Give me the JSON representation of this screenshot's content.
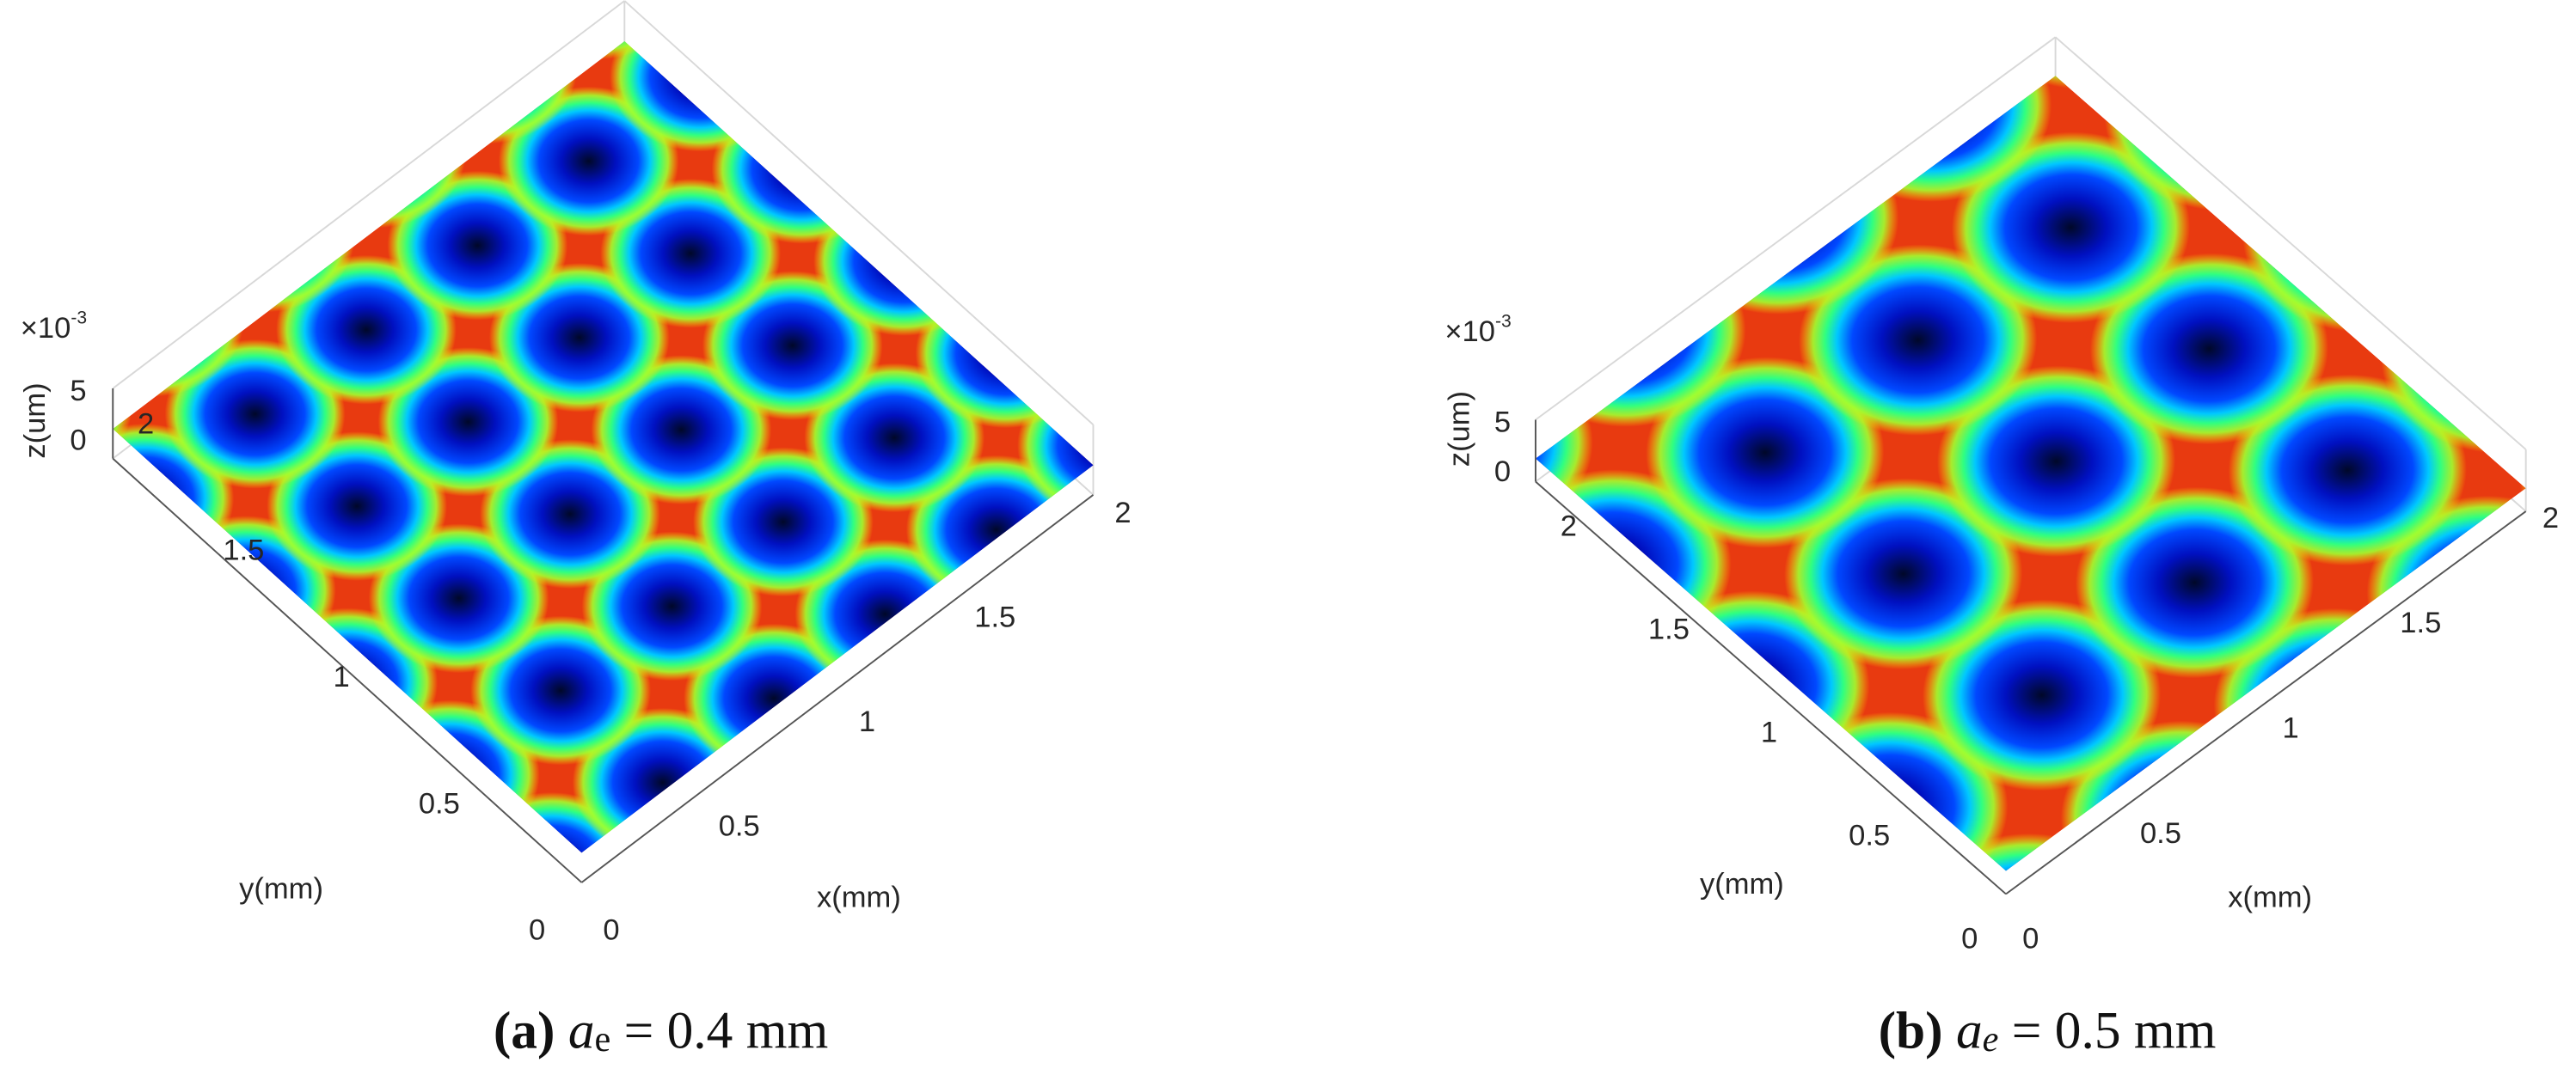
{
  "chart_data": [
    {
      "type": "surface",
      "x_label": "x(mm)",
      "y_label": "y(mm)",
      "z_label": "z(um)",
      "z_multiplier": {
        "base": "×10",
        "exponent": "-3"
      },
      "xlim": [
        0,
        2
      ],
      "ylim": [
        0,
        2
      ],
      "zlim": [
        0,
        5
      ],
      "xticks": [
        0,
        0.5,
        1,
        1.5,
        2
      ],
      "yticks": [
        0,
        0.5,
        1,
        1.5,
        2
      ],
      "zticks": [
        0,
        5
      ],
      "caption": {
        "label": "(a)",
        "symbol": "a",
        "subscript": "e",
        "subscript_style": "normal",
        "value_text": "= 0.4 mm"
      }
    },
    {
      "type": "surface",
      "x_label": "x(mm)",
      "y_label": "y(mm)",
      "z_label": "z(um)",
      "z_multiplier": {
        "base": "×10",
        "exponent": "-3"
      },
      "xlim": [
        0,
        2
      ],
      "ylim": [
        0,
        2
      ],
      "zlim": [
        0,
        5
      ],
      "xticks": [
        0,
        0.5,
        1,
        1.5,
        2
      ],
      "yticks": [
        0,
        0.5,
        1,
        1.5,
        2
      ],
      "zticks": [
        0,
        5
      ],
      "caption": {
        "label": "(b)",
        "symbol": "a",
        "subscript": "e",
        "subscript_style": "italic",
        "value_text": "= 0.5 mm"
      }
    }
  ]
}
